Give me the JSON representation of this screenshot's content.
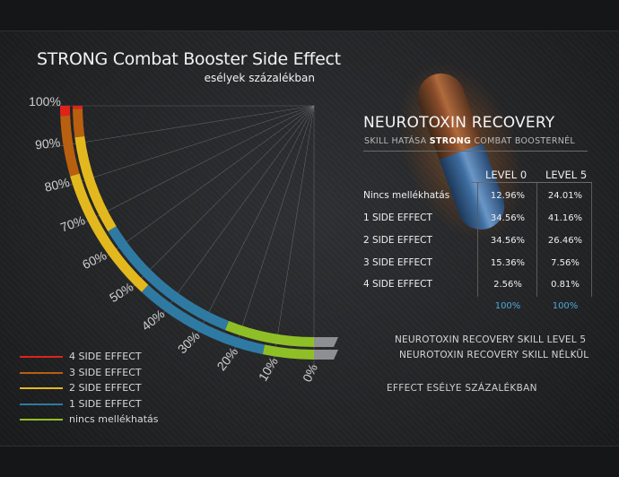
{
  "title": "STRONG Combat Booster Side Effect",
  "subtitle": "esélyek százalékban",
  "legend": [
    {
      "label": "4 SIDE EFFECT",
      "color": "#e0231a"
    },
    {
      "label": "3 SIDE EFFECT",
      "color": "#b95f10"
    },
    {
      "label": "2 SIDE EFFECT",
      "color": "#e2b81e"
    },
    {
      "label": "1 SIDE EFFECT",
      "color": "#2f7aa3"
    },
    {
      "label": "nincs mellékhatás",
      "color": "#8fbf26"
    }
  ],
  "bar_labels": {
    "outer": "NEUROTOXIN RECOVERY SKILL LEVEL 5",
    "inner": "NEUROTOXIN RECOVERY SKILL NÉLKÜL"
  },
  "axis_caption": "EFFECT ESÉLYE SZÁZALÉKBAN",
  "panel": {
    "title": "NEUROTOXIN RECOVERY",
    "subtitle_pre": "SKILL HATÁSA",
    "subtitle_hl": "STRONG",
    "subtitle_post": "COMBAT BOOSTERNÉL",
    "col_level0": "LEVEL 0",
    "col_level5": "LEVEL 5",
    "rows": [
      {
        "label": "Nincs mellékhatás",
        "level0": "12.96%",
        "level5": "24.01%"
      },
      {
        "label": "1 SIDE EFFECT",
        "level0": "34.56%",
        "level5": "41.16%"
      },
      {
        "label": "2 SIDE EFFECT",
        "level0": "34.56%",
        "level5": "26.46%"
      },
      {
        "label": "3 SIDE EFFECT",
        "level0": "15.36%",
        "level5": "7.56%"
      },
      {
        "label": "4 SIDE EFFECT",
        "level0": "2.56%",
        "level5": "0.81%"
      }
    ],
    "total_level0": "100%",
    "total_level5": "100%"
  },
  "chart_data": {
    "type": "radial-stacked-bar",
    "axis_ticks": [
      "0%",
      "10%",
      "20%",
      "30%",
      "40%",
      "50%",
      "60%",
      "70%",
      "80%",
      "90%",
      "100%"
    ],
    "axis_range": [
      0,
      100
    ],
    "stack_order": [
      "nincs mellékhatás",
      "1 SIDE EFFECT",
      "2 SIDE EFFECT",
      "3 SIDE EFFECT",
      "4 SIDE EFFECT"
    ],
    "series": [
      {
        "name": "NEUROTOXIN RECOVERY SKILL LEVEL 5",
        "values": [
          24.01,
          41.16,
          26.46,
          7.56,
          0.81
        ]
      },
      {
        "name": "NEUROTOXIN RECOVERY SKILL NÉLKÜL",
        "values": [
          12.96,
          34.56,
          34.56,
          15.36,
          2.56
        ]
      }
    ],
    "colors": [
      "#8fbf26",
      "#2f7aa3",
      "#e2b81e",
      "#b95f10",
      "#e0231a"
    ],
    "end_cap_color": "#8e8f92"
  }
}
